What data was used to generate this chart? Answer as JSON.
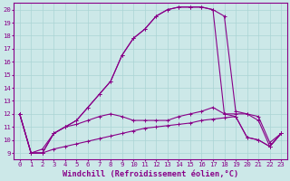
{
  "xlabel": "Windchill (Refroidissement éolien,°C)",
  "bg_color": "#cce8e8",
  "line_color": "#880088",
  "xlim": [
    -0.5,
    23.5
  ],
  "ylim": [
    8.5,
    20.5
  ],
  "xticks": [
    0,
    1,
    2,
    3,
    4,
    5,
    6,
    7,
    8,
    9,
    10,
    11,
    12,
    13,
    14,
    15,
    16,
    17,
    18,
    19,
    20,
    21,
    22,
    23
  ],
  "yticks": [
    9,
    10,
    11,
    12,
    13,
    14,
    15,
    16,
    17,
    18,
    19,
    20
  ],
  "grid_color": "#aad4d4",
  "tick_fontsize": 5.2,
  "xlabel_fontsize": 6.2,
  "curves": [
    [
      12,
      9,
      9.0,
      10.5,
      11.0,
      11.5,
      12.5,
      13.5,
      14.5,
      16.5,
      17.8,
      18.5,
      19.5,
      20.0,
      20.2,
      20.2,
      20.2,
      20.0,
      19.5,
      12.2,
      12.0,
      11.5,
      9.5,
      10.5
    ],
    [
      12,
      9,
      9.0,
      10.5,
      11.0,
      11.5,
      12.5,
      13.5,
      14.5,
      16.5,
      17.8,
      18.5,
      19.5,
      20.0,
      20.2,
      20.2,
      20.2,
      20.0,
      12.0,
      12.0,
      12.0,
      11.8,
      9.8,
      10.5
    ],
    [
      12,
      9,
      9.3,
      10.5,
      11.0,
      11.2,
      11.5,
      11.8,
      12.0,
      11.8,
      11.5,
      11.5,
      11.5,
      11.5,
      11.8,
      12.0,
      12.2,
      12.5,
      12.0,
      11.8,
      10.2,
      10.0,
      9.5,
      10.5
    ],
    [
      12,
      9,
      9.0,
      9.3,
      9.5,
      9.7,
      9.9,
      10.1,
      10.3,
      10.5,
      10.7,
      10.9,
      11.0,
      11.1,
      11.2,
      11.3,
      11.5,
      11.6,
      11.7,
      11.8,
      10.2,
      10.0,
      9.5,
      10.5
    ]
  ]
}
